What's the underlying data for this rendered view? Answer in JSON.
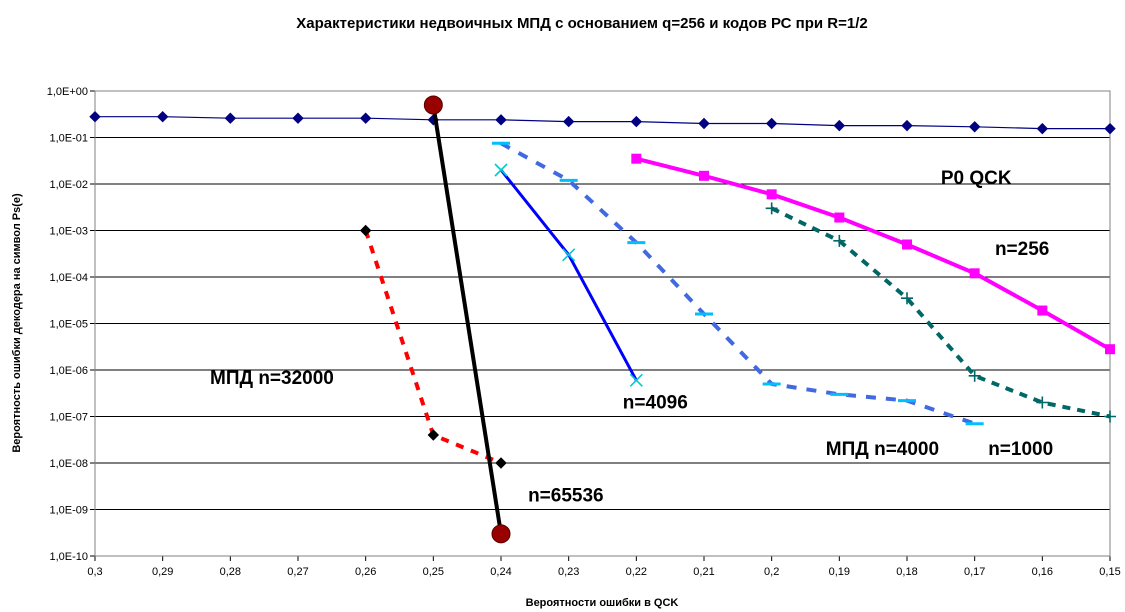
{
  "chart_data": {
    "type": "line",
    "title": "Характеристики недвоичных МПД с основанием q=256 и кодов РС при R=1/2",
    "xlabel": "Вероятности ошибки в QCK",
    "ylabel": "Вероятность ошибки декодера на символ Ps(e)",
    "x_ticks": [
      "0,3",
      "0,29",
      "0,28",
      "0,27",
      "0,26",
      "0,25",
      "0,24",
      "0,23",
      "0,22",
      "0,21",
      "0,2",
      "0,19",
      "0,18",
      "0,17",
      "0,16",
      "0,15"
    ],
    "y_ticks": [
      "1,0E+00",
      "1,0E-01",
      "1,0E-02",
      "1,0E-03",
      "1,0E-04",
      "1,0E-05",
      "1,0E-06",
      "1,0E-07",
      "1,0E-08",
      "1,0E-09",
      "1,0E-10"
    ],
    "xlim": [
      0.3,
      0.15
    ],
    "ylim": [
      1e-10,
      1
    ],
    "y_scale": "log",
    "grid": "horizontal",
    "series": [
      {
        "id": "p0",
        "color": "#000080",
        "width": 1.2,
        "dash": "",
        "marker": "diamond",
        "marker_color": "#000080",
        "x": [
          0.3,
          0.29,
          0.28,
          0.27,
          0.26,
          0.25,
          0.24,
          0.23,
          0.22,
          0.21,
          0.2,
          0.19,
          0.18,
          0.17,
          0.16,
          0.15
        ],
        "y": [
          0.28,
          0.28,
          0.26,
          0.26,
          0.26,
          0.24,
          0.24,
          0.22,
          0.22,
          0.2,
          0.2,
          0.18,
          0.18,
          0.17,
          0.155,
          0.155
        ]
      },
      {
        "id": "rs256",
        "color": "#ff00ff",
        "width": 4,
        "dash": "",
        "marker": "square",
        "marker_color": "#ff00ff",
        "x": [
          0.22,
          0.21,
          0.2,
          0.19,
          0.18,
          0.17,
          0.16,
          0.15
        ],
        "y": [
          0.035,
          0.015,
          0.006,
          0.0019,
          0.0005,
          0.00012,
          1.9e-05,
          2.8e-06
        ]
      },
      {
        "id": "rs1000",
        "color": "#006666",
        "width": 4,
        "dash": "8,7",
        "marker": "plus",
        "marker_color": "#006666",
        "x": [
          0.2,
          0.19,
          0.18,
          0.17,
          0.16,
          0.15
        ],
        "y": [
          0.003,
          0.0006,
          3.5e-05,
          7.5e-07,
          2e-07,
          1e-07
        ]
      },
      {
        "id": "mpd4000",
        "color": "#4169e1",
        "width": 4,
        "dash": "10,10",
        "marker": "dash",
        "marker_color": "#00bfff",
        "x": [
          0.24,
          0.23,
          0.22,
          0.21,
          0.2,
          0.19,
          0.18,
          0.17
        ],
        "y": [
          0.075,
          0.012,
          0.00055,
          1.6e-05,
          5e-07,
          3e-07,
          2.2e-07,
          7e-08
        ]
      },
      {
        "id": "rs4096",
        "color": "#0000ff",
        "width": 3,
        "dash": "",
        "marker": "star",
        "marker_color": "#00cccc",
        "x": [
          0.24,
          0.23,
          0.22
        ],
        "y": [
          0.02,
          0.0003,
          6e-07
        ]
      },
      {
        "id": "mpd32000",
        "color": "#ff0000",
        "width": 4,
        "dash": "8,8",
        "marker": "diamond",
        "marker_color": "#000000",
        "x": [
          0.26,
          0.25,
          0.24
        ],
        "y": [
          0.001,
          4e-08,
          1e-08
        ]
      },
      {
        "id": "rs65536",
        "color": "#000000",
        "width": 4,
        "dash": "",
        "marker": "circle",
        "marker_color": "#990000",
        "x": [
          0.25,
          0.24
        ],
        "y": [
          0.5,
          3e-10
        ]
      }
    ],
    "annotations": [
      {
        "id": "p0-label",
        "text": "P0  QCK",
        "x": 0.175,
        "y": 0.01
      },
      {
        "id": "n256-label",
        "text": "n=256",
        "x": 0.167,
        "y": 0.0003
      },
      {
        "id": "mpd32000-label",
        "text": "МПД    n=32000",
        "x": 0.283,
        "y": 5e-07
      },
      {
        "id": "n4096-label",
        "text": "n=4096",
        "x": 0.222,
        "y": 1.5e-07
      },
      {
        "id": "mpd4000-label",
        "text": "МПД    n=4000",
        "x": 0.192,
        "y": 1.5e-08
      },
      {
        "id": "n1000-label",
        "text": "n=1000",
        "x": 0.168,
        "y": 1.5e-08
      },
      {
        "id": "n65536-label",
        "text": "n=65536",
        "x": 0.236,
        "y": 1.5e-09
      }
    ]
  }
}
